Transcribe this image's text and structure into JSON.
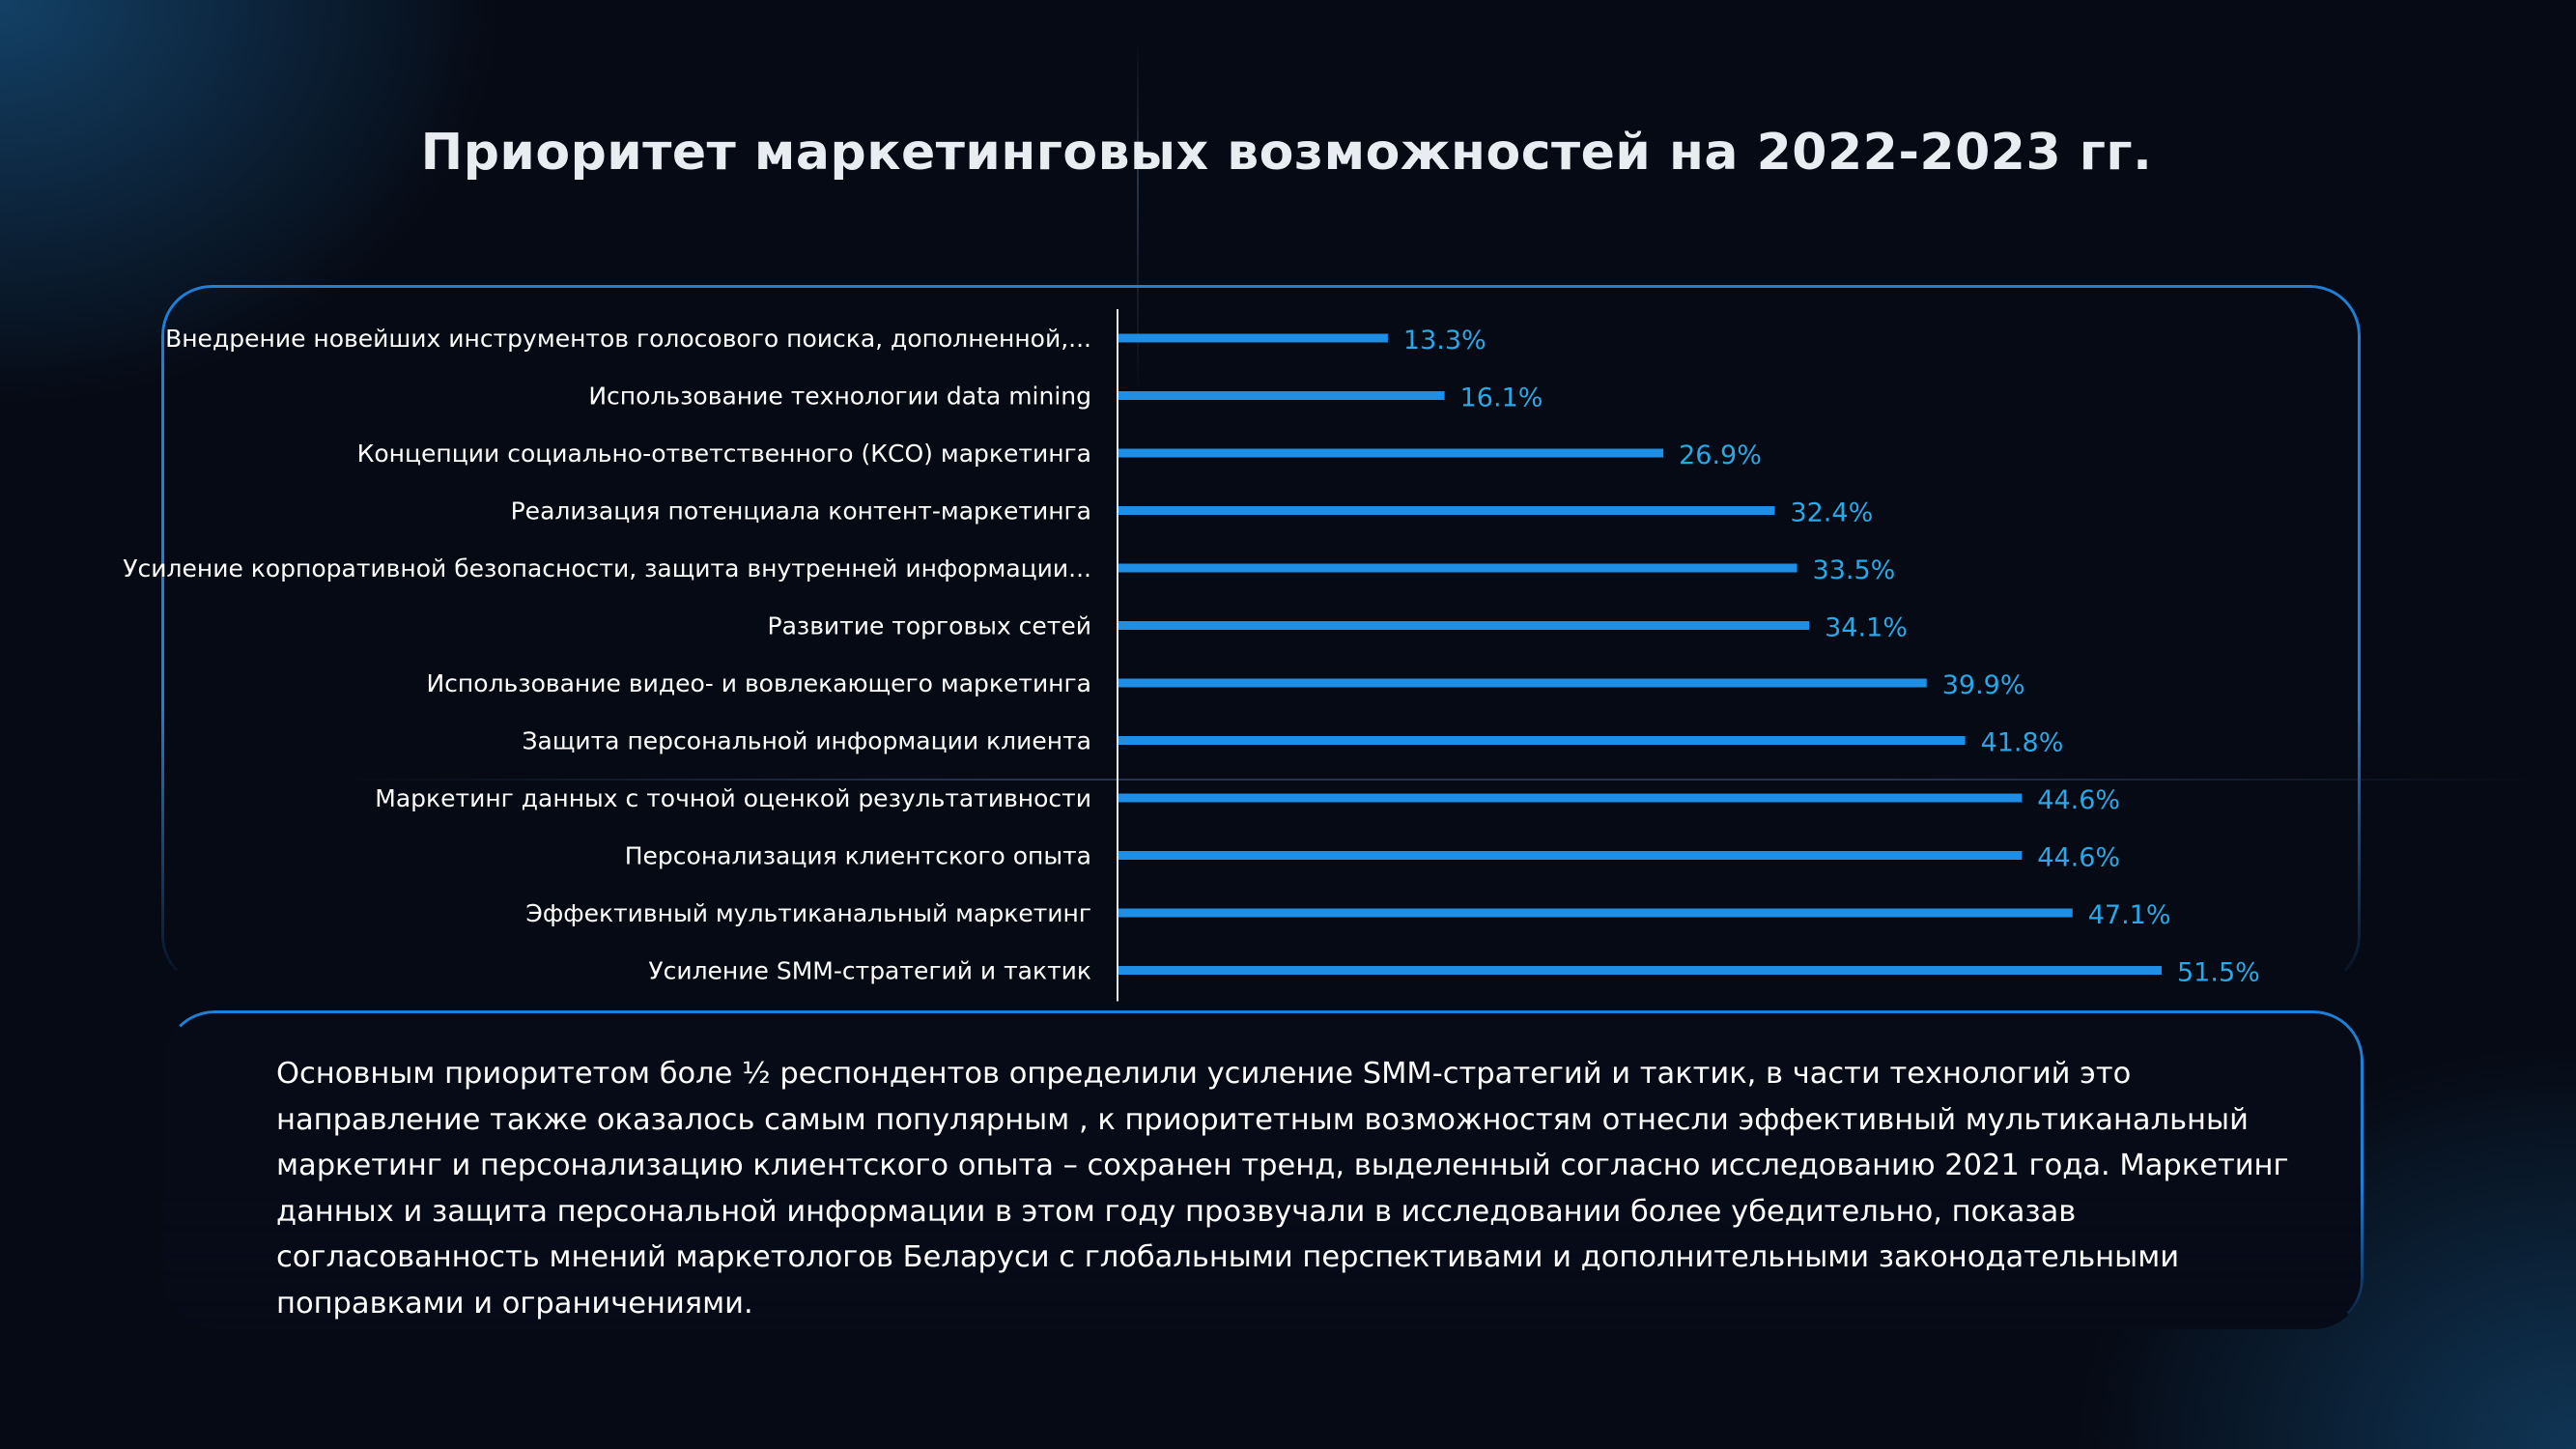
{
  "title": "Приоритет маркетинговых возможностей на 2022-2023 гг.",
  "colors": {
    "background": "#060a14",
    "bar": "#1f8fe6",
    "value_label": "#29a8e8",
    "panel_border": "#1e7fd6",
    "text": "#ffffff"
  },
  "chart_data": {
    "type": "bar",
    "orientation": "horizontal",
    "categories": [
      "Внедрение новейших инструментов голосового поиска, дополненной,...",
      "Использование технологии data mining",
      "Концепции социально-ответственного (КСО) маркетинга",
      "Реализация потенциала контент-маркетинга",
      "Усиление корпоративной безопасности, защита внутренней информации...",
      "Развитие торговых сетей",
      "Использование видео- и вовлекающего маркетинга",
      "Защита персональной информации клиента",
      "Маркетинг данных с точной оценкой результативности",
      "Персонализация клиентского опыта",
      "Эффективный мультиканальный маркетинг",
      "Усиление SMM-стратегий и тактик"
    ],
    "values": [
      13.3,
      16.1,
      26.9,
      32.4,
      33.5,
      34.1,
      39.9,
      41.8,
      44.6,
      44.6,
      47.1,
      51.5
    ],
    "value_labels": [
      "13.3%",
      "16.1%",
      "26.9%",
      "32.4%",
      "33.5%",
      "34.1%",
      "39.9%",
      "41.8%",
      "44.6%",
      "44.6%",
      "47.1%",
      "51.5%"
    ],
    "title": "",
    "xlabel": "",
    "ylabel": "",
    "xlim": [
      0,
      60
    ],
    "grid": false,
    "legend": "none"
  },
  "summary": "Основным приоритетом боле ½ респондентов определили усиление SMM-стратегий и тактик, в части технологий это направление также оказалось самым популярным , к приоритетным возможностям отнесли эффективный мультиканальный маркетинг и персонализацию клиентского опыта –  сохранен тренд, выделенный  согласно исследованию 2021 года.  Маркетинг данных и защита персональной информации в этом году прозвучали в исследовании более убедительно,  показав согласованность мнений маркетологов Беларуси с глобальными перспективами и дополнительными законодательными поправками и ограничениями."
}
